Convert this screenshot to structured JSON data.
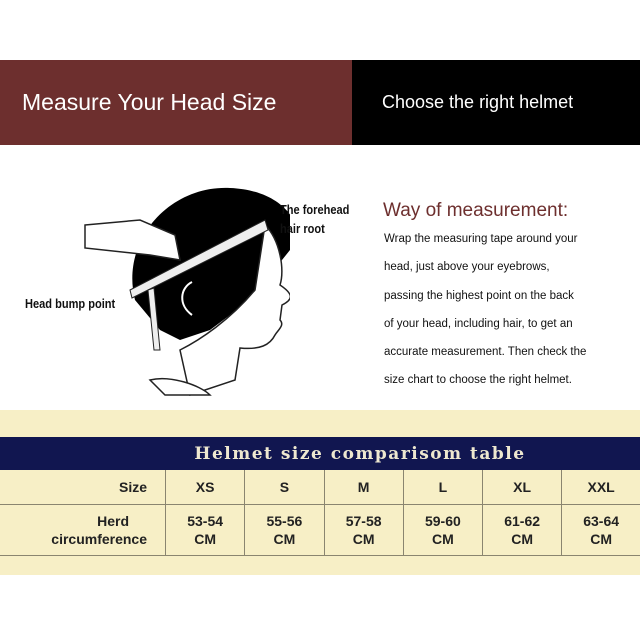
{
  "banner": {
    "left_title": "Measure Your Head Size",
    "right_title": "Choose the right helmet",
    "left_color": "#6d2f2e",
    "right_color": "#000000"
  },
  "illustration": {
    "forehead_label_1": "The forehead",
    "forehead_label_2": "hair root",
    "bump_label": "Head bump point"
  },
  "measurement": {
    "title": "Way of measurement:",
    "lines": [
      "Wrap the measuring tape around your",
      "head, just above your eyebrows,",
      "passing the highest point on the back",
      "of your head, including hair, to get an",
      "accurate measurement. Then check the",
      "size chart to choose the right helmet."
    ]
  },
  "table": {
    "title": "Helmet size comparisom table",
    "header_color": "#111650",
    "background_color": "#f7efc6",
    "size_label": "Size",
    "sizes": [
      "XS",
      "S",
      "M",
      "L",
      "XL",
      "XXL"
    ],
    "circ_label_1": "Herd",
    "circ_label_2": "circumference",
    "ranges": [
      "53-54",
      "55-56",
      "57-58",
      "59-60",
      "61-62",
      "63-64"
    ],
    "unit": "CM"
  }
}
